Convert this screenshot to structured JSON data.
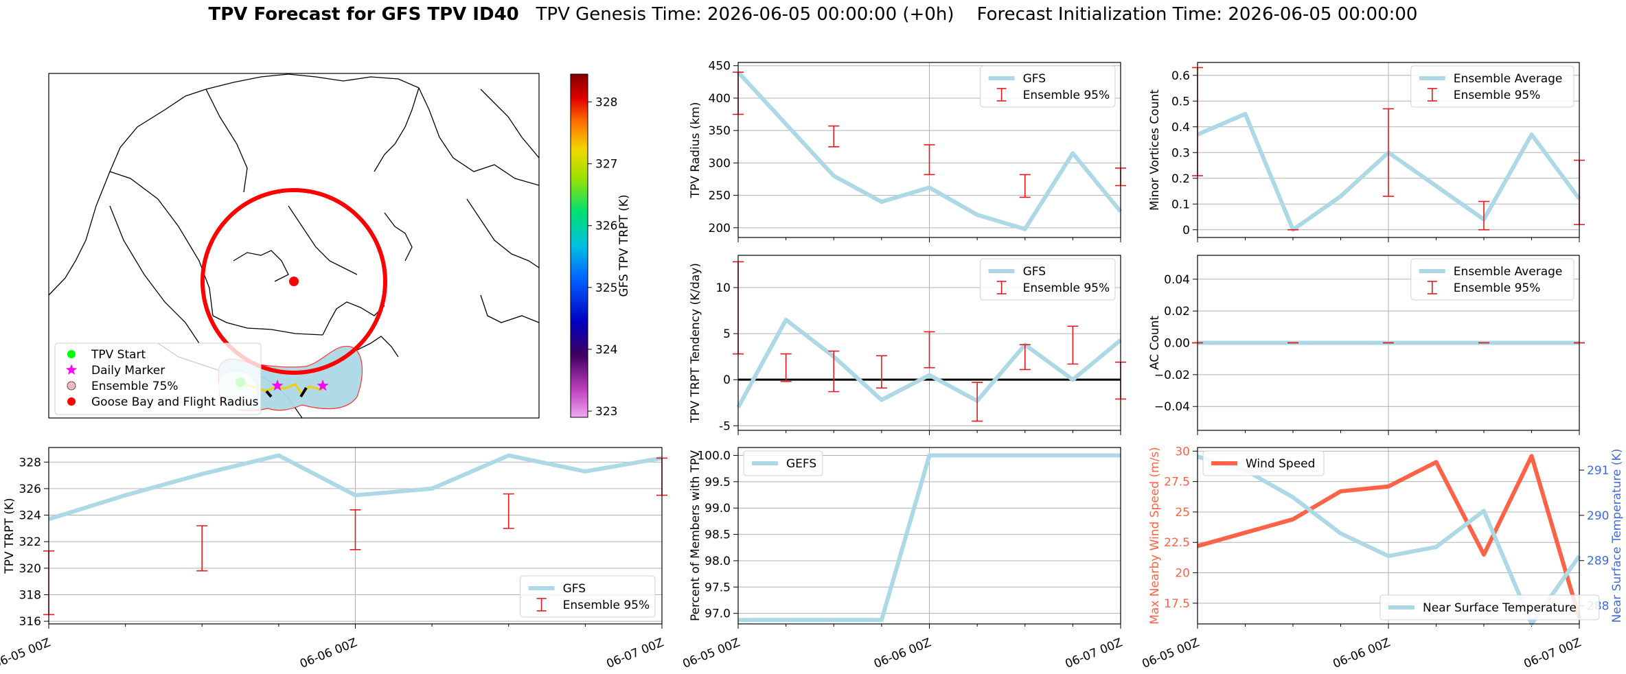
{
  "title": {
    "main": "TPV Forecast for GFS TPV ID40",
    "genesis": "TPV Genesis Time: 2026-06-05 00:00:00 (+0h)",
    "init": "Forecast Initialization Time: 2026-06-05 00:00:00"
  },
  "colors": {
    "gfs_line": "#add8e6",
    "errorbar": "#e31a1c",
    "wind": "#ff6347",
    "temp_axis": "#4169e1",
    "track_fill": "#add8e6",
    "circle": "#ff0000"
  },
  "chart_data": [
    {
      "id": "map",
      "type": "map",
      "colorbar": {
        "label": "GFS TPV TRPT (K)",
        "ticks": [
          323,
          324,
          325,
          326,
          327,
          328
        ],
        "range": [
          322.9,
          328.45
        ]
      },
      "legend": {
        "placement": "lower-left",
        "items": [
          "TPV Start",
          "Daily Marker",
          "Ensemble 75%",
          "Goose Bay and Flight Radius"
        ]
      }
    },
    {
      "id": "radius",
      "type": "line",
      "ylabel": "TPV Radius (km)",
      "ylim": [
        185,
        455
      ],
      "yticks": [
        200,
        250,
        300,
        350,
        400,
        450
      ],
      "legend": {
        "placement": "top-right",
        "items": [
          "GFS",
          "Ensemble 95%"
        ]
      },
      "series": [
        {
          "name": "GFS",
          "x": [
            0,
            6,
            12,
            18,
            24,
            30,
            36,
            42,
            48
          ],
          "values": [
            440,
            360,
            280,
            240,
            262,
            220,
            198,
            315,
            225
          ]
        }
      ],
      "errorbars": [
        {
          "x": 0,
          "low": 375,
          "high": 440
        },
        {
          "x": 12,
          "low": 325,
          "high": 357
        },
        {
          "x": 24,
          "low": 282,
          "high": 328
        },
        {
          "x": 36,
          "low": 247,
          "high": 282
        },
        {
          "x": 48,
          "low": 265,
          "high": 292
        }
      ]
    },
    {
      "id": "minor",
      "type": "line",
      "ylabel": "Minor Vortices Count",
      "ylim": [
        -0.03,
        0.65
      ],
      "yticks": [
        0.0,
        0.1,
        0.2,
        0.3,
        0.4,
        0.5,
        0.6
      ],
      "legend": {
        "placement": "top-right",
        "items": [
          "Ensemble Average",
          "Ensemble 95%"
        ]
      },
      "series": [
        {
          "name": "Ensemble Average",
          "x": [
            0,
            6,
            12,
            18,
            24,
            30,
            36,
            42,
            48
          ],
          "values": [
            0.37,
            0.45,
            0.0,
            0.13,
            0.3,
            0.17,
            0.04,
            0.37,
            0.12
          ]
        }
      ],
      "errorbars": [
        {
          "x": 0,
          "low": 0.21,
          "high": 0.63
        },
        {
          "x": 12,
          "low": 0.0,
          "high": 0.0
        },
        {
          "x": 24,
          "low": 0.13,
          "high": 0.47
        },
        {
          "x": 36,
          "low": 0.0,
          "high": 0.11
        },
        {
          "x": 48,
          "low": 0.02,
          "high": 0.27
        }
      ]
    },
    {
      "id": "tendency",
      "type": "line",
      "ylabel": "TPV TRPT Tendency (K/day)",
      "ylim": [
        -5.5,
        13.5
      ],
      "yticks": [
        -5,
        0,
        5,
        10
      ],
      "zero_line": true,
      "legend": {
        "placement": "top-right",
        "items": [
          "GFS",
          "Ensemble 95%"
        ]
      },
      "series": [
        {
          "name": "GFS",
          "x": [
            0,
            6,
            12,
            18,
            24,
            30,
            36,
            42,
            48
          ],
          "values": [
            -3,
            6.5,
            2.5,
            -2.2,
            0.5,
            -2.3,
            3.8,
            0,
            4.3
          ]
        }
      ],
      "errorbars": [
        {
          "x": 0,
          "low": 2.8,
          "high": 12.8
        },
        {
          "x": 6,
          "low": -0.2,
          "high": 2.8
        },
        {
          "x": 12,
          "low": -1.3,
          "high": 3.1
        },
        {
          "x": 18,
          "low": -0.9,
          "high": 2.6
        },
        {
          "x": 24,
          "low": 1.3,
          "high": 5.2
        },
        {
          "x": 30,
          "low": -4.5,
          "high": -0.3
        },
        {
          "x": 36,
          "low": 1.1,
          "high": 3.8
        },
        {
          "x": 42,
          "low": 1.7,
          "high": 5.8
        },
        {
          "x": 48,
          "low": -2.1,
          "high": 1.9
        }
      ]
    },
    {
      "id": "ac",
      "type": "line",
      "ylabel": "AC Count",
      "ylim": [
        -0.055,
        0.055
      ],
      "yticks": [
        -0.04,
        -0.02,
        0.0,
        0.02,
        0.04
      ],
      "ytick_labels": [
        "−0.04",
        "−0.02",
        "0.00",
        "0.02",
        "0.04"
      ],
      "legend": {
        "placement": "top-right",
        "items": [
          "Ensemble Average",
          "Ensemble 95%"
        ]
      },
      "series": [
        {
          "name": "Ensemble Average",
          "x": [
            0,
            48
          ],
          "values": [
            0,
            0
          ]
        }
      ],
      "errorbars": [
        {
          "x": 0,
          "low": 0,
          "high": 0
        },
        {
          "x": 12,
          "low": 0,
          "high": 0
        },
        {
          "x": 24,
          "low": 0,
          "high": 0
        },
        {
          "x": 36,
          "low": 0,
          "high": 0
        },
        {
          "x": 48,
          "low": 0,
          "high": 0
        }
      ]
    },
    {
      "id": "trpt",
      "type": "line",
      "ylabel": "TPV TRPT (K)",
      "ylim": [
        315.8,
        329.1
      ],
      "yticks": [
        316,
        318,
        320,
        322,
        324,
        326,
        328
      ],
      "xticks": [
        "06-05 00Z",
        "06-06 00Z",
        "06-07 00Z"
      ],
      "legend": {
        "placement": "lower-right",
        "items": [
          "GFS",
          "Ensemble 95%"
        ]
      },
      "series": [
        {
          "name": "GFS",
          "x": [
            0,
            6,
            12,
            18,
            24,
            30,
            36,
            42,
            48
          ],
          "values": [
            323.7,
            325.5,
            327.1,
            328.5,
            325.5,
            326.0,
            328.5,
            327.3,
            328.3
          ]
        }
      ],
      "errorbars": [
        {
          "x": 0,
          "low": 316.5,
          "high": 321.3
        },
        {
          "x": 12,
          "low": 319.8,
          "high": 323.2
        },
        {
          "x": 24,
          "low": 321.4,
          "high": 324.4
        },
        {
          "x": 36,
          "low": 323.0,
          "high": 325.6
        },
        {
          "x": 48,
          "low": 325.5,
          "high": 328.3
        }
      ]
    },
    {
      "id": "members",
      "type": "line",
      "ylabel": "Percent of Members with TPV",
      "ylim": [
        96.8,
        100.15
      ],
      "yticks": [
        97.0,
        97.5,
        98.0,
        98.5,
        99.0,
        99.5,
        100.0
      ],
      "ytick_labels": [
        "97.0",
        "97.5",
        "98.0",
        "98.5",
        "99.0",
        "99.5",
        "100.0"
      ],
      "xticks": [
        "06-05 00Z",
        "06-06 00Z",
        "06-07 00Z"
      ],
      "legend": {
        "placement": "top-left",
        "items": [
          "GEFS"
        ]
      },
      "series": [
        {
          "name": "GEFS",
          "x": [
            0,
            6,
            12,
            18,
            24,
            30,
            36,
            42,
            48
          ],
          "values": [
            96.875,
            96.875,
            96.875,
            96.875,
            100,
            100,
            100,
            100,
            100
          ]
        }
      ]
    },
    {
      "id": "wind_temp",
      "type": "line",
      "ylabel": "Max Nearby Wind Speed (m/s)",
      "ylabel_right": "Near Surface Temperature (K)",
      "ylim": [
        15.8,
        30.3
      ],
      "yticks": [
        17.5,
        20.0,
        22.5,
        25.0,
        27.5,
        30.0
      ],
      "ylim_right": [
        287.6,
        291.5
      ],
      "yticks_right": [
        288,
        289,
        290,
        291
      ],
      "xticks": [
        "06-05 00Z",
        "06-06 00Z",
        "06-07 00Z"
      ],
      "legend": {
        "placement": "top-left / lower-right",
        "items": [
          "Wind Speed",
          "Near Surface Temperature"
        ]
      },
      "series": [
        {
          "name": "Wind Speed",
          "axis": "left",
          "x": [
            0,
            6,
            12,
            18,
            24,
            30,
            36,
            42,
            48
          ],
          "values": [
            22.2,
            23.3,
            24.4,
            26.7,
            27.1,
            29.1,
            21.5,
            29.6,
            16.3
          ]
        },
        {
          "name": "Near Surface Temperature",
          "axis": "right",
          "x": [
            0,
            6,
            12,
            18,
            24,
            30,
            36,
            42,
            48
          ],
          "values": [
            291.3,
            291.0,
            290.4,
            289.6,
            289.1,
            289.3,
            290.1,
            287.6,
            289.1
          ]
        }
      ]
    }
  ]
}
